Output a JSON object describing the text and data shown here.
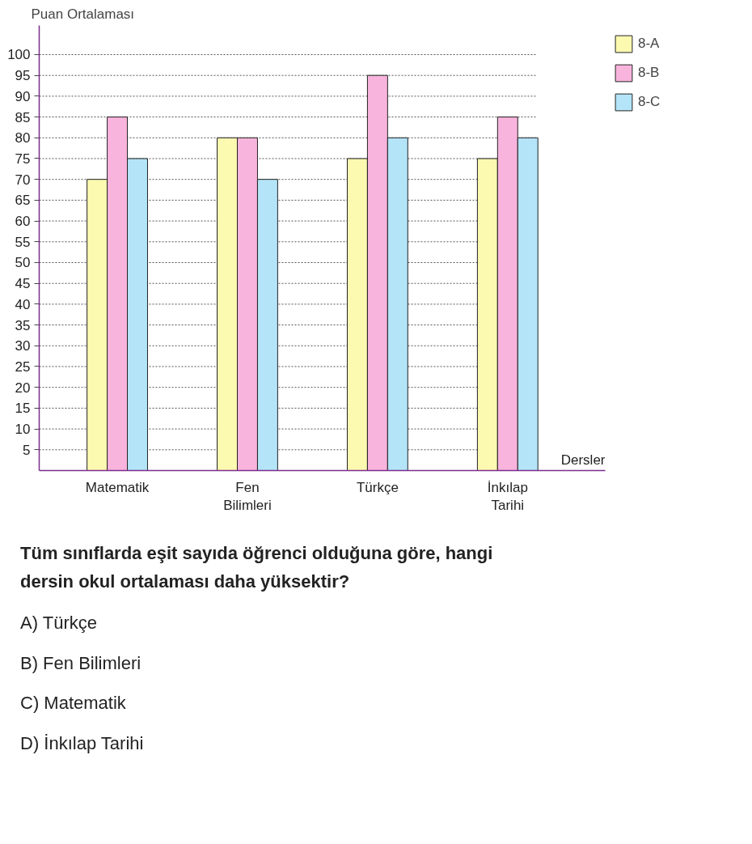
{
  "chart_data": {
    "type": "bar",
    "categories": [
      "Matematik",
      "Fen Bilimleri",
      "Türkçe",
      "İnkılap Tarihi"
    ],
    "series": [
      {
        "name": "8-A",
        "color": "#fcf9b0",
        "values": [
          70,
          80,
          75,
          75
        ]
      },
      {
        "name": "8-B",
        "color": "#f8b4dc",
        "values": [
          85,
          80,
          95,
          85
        ]
      },
      {
        "name": "8-C",
        "color": "#b4e4f8",
        "values": [
          75,
          70,
          80,
          80
        ]
      }
    ],
    "ylabel": "Puan Ortalaması",
    "xlabel": "Dersler",
    "ylim": [
      0,
      107
    ],
    "yticks": [
      5,
      10,
      15,
      20,
      25,
      30,
      35,
      40,
      45,
      50,
      55,
      60,
      65,
      70,
      75,
      80,
      85,
      90,
      95,
      100
    ],
    "grid": "y",
    "legend": "top right",
    "annotations": [
      "Tüm sınıflarda eşit sayıda öğrenci olduğuna göre, hangi dersin okul ortalaması daha yüksektir?",
      "A)  Türkçe",
      "B)  Fen Bilimleri",
      "C)  Matematik",
      "D)  İnkılap Tarihi"
    ]
  }
}
